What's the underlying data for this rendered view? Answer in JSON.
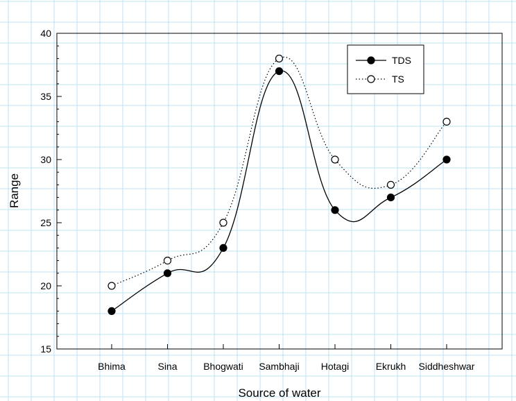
{
  "chart_data": {
    "type": "line",
    "categories": [
      "Bhima",
      "Sina",
      "Bhogwati",
      "Sambhaji",
      "Hotagi",
      "Ekrukh",
      "Siddheshwar"
    ],
    "series": [
      {
        "name": "TDS",
        "values": [
          18,
          21,
          23,
          37,
          26,
          27,
          30
        ],
        "marker": "filled-circle",
        "line": "solid",
        "color": "#000000"
      },
      {
        "name": "TS",
        "values": [
          20,
          22,
          25,
          38,
          30,
          28,
          33
        ],
        "marker": "open-circle",
        "line": "dotted",
        "color": "#000000"
      }
    ],
    "xlabel": "Source of water",
    "ylabel": "Range",
    "ylim": [
      15,
      40
    ],
    "yticks": [
      15,
      20,
      25,
      30,
      35,
      40
    ],
    "legend_position": "top-right",
    "grid_color": "#bfe3f2"
  }
}
